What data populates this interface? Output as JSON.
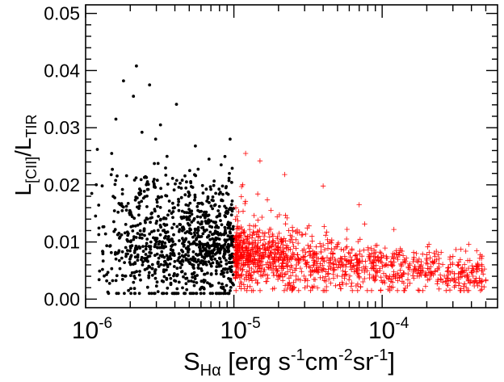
{
  "chart_data": {
    "type": "scatter",
    "x_scale": "log",
    "y_scale": "linear",
    "xlim": [
      1e-06,
      0.0006
    ],
    "ylim": [
      -0.0015,
      0.0515
    ],
    "x_major_ticks": [
      {
        "value": 1e-06,
        "base": "10",
        "exp": "-6"
      },
      {
        "value": 1e-05,
        "base": "10",
        "exp": "-5"
      },
      {
        "value": 0.0001,
        "base": "10",
        "exp": "-4"
      }
    ],
    "y_ticks": [
      {
        "value": 0.0,
        "label": "0.00"
      },
      {
        "value": 0.01,
        "label": "0.01"
      },
      {
        "value": 0.02,
        "label": "0.02"
      },
      {
        "value": 0.03,
        "label": "0.03"
      },
      {
        "value": 0.04,
        "label": "0.04"
      },
      {
        "value": 0.05,
        "label": "0.05"
      }
    ],
    "xlabel": {
      "main": "S",
      "sub": "Hα",
      "text": " [erg s",
      "e1": "-1",
      "t2": "cm",
      "e2": "-2",
      "t3": "sr",
      "e3": "-1",
      "t4": "]"
    },
    "ylabel": {
      "l1": "L",
      "s1": "[CII]",
      "mid": "/L",
      "s2": "TIR"
    },
    "colors": {
      "low_series": "#000000",
      "high_series": "#ff0000"
    },
    "series": [
      {
        "marker": "dot",
        "color": "#000000",
        "x_range": [
          1e-06,
          1e-05
        ],
        "point_count": 1000,
        "points": [
          [
            2.2e-06,
            0.0408
          ],
          [
            1.8e-06,
            0.0382
          ],
          [
            2.7e-06,
            0.0375
          ],
          [
            2.1e-06,
            0.0355
          ],
          [
            4.1e-06,
            0.0341
          ],
          [
            1.6e-06,
            0.0315
          ],
          [
            3.2e-06,
            0.0305
          ],
          [
            2.4e-06,
            0.0292
          ],
          [
            1.2e-06,
            0.0262
          ],
          [
            1.5e-06,
            0.0255
          ],
          [
            5.5e-06,
            0.0268
          ],
          [
            6.8e-06,
            0.0245
          ],
          [
            8.2e-06,
            0.0235
          ],
          [
            1.1e-06,
            0.0185
          ],
          [
            1.3e-06,
            0.0052
          ],
          [
            9.5e-06,
            0.0035
          ]
        ]
      },
      {
        "marker": "plus",
        "color": "#ff0000",
        "x_range": [
          1e-05,
          0.0005
        ],
        "point_count": 1200,
        "points": [
          [
            1.2e-05,
            0.0255
          ],
          [
            1.5e-05,
            0.0242
          ],
          [
            2.2e-05,
            0.0218
          ],
          [
            4e-05,
            0.0198
          ],
          [
            7e-05,
            0.0165
          ],
          [
            0.00012,
            0.0122
          ],
          [
            0.00025,
            0.0082
          ],
          [
            0.00038,
            0.0035
          ],
          [
            0.00045,
            0.0028
          ],
          [
            0.0005,
            0.0032
          ]
        ]
      }
    ]
  }
}
